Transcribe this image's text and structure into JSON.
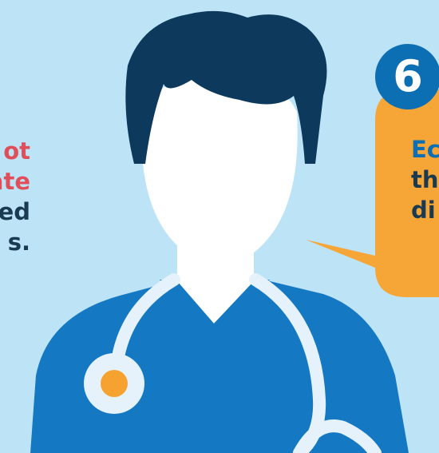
{
  "step_number": "6",
  "left_text": {
    "line1": "ot",
    "line2": "ate",
    "line3": "ed",
    "line4": "s."
  },
  "bubble_text": {
    "line1": "Ec",
    "line2": "th",
    "line3": "di"
  },
  "colors": {
    "background": "#bde3f7",
    "hair": "#0d3a5c",
    "scrubs": "#1478c3",
    "stethoscope": "#e6f2fb",
    "bell": "#f6a230",
    "bubble": "#f6a636",
    "number_circle": "#0d6fb3",
    "accent_red": "#e04e5a"
  },
  "icons": {
    "figure": "doctor-with-stethoscope-icon"
  }
}
